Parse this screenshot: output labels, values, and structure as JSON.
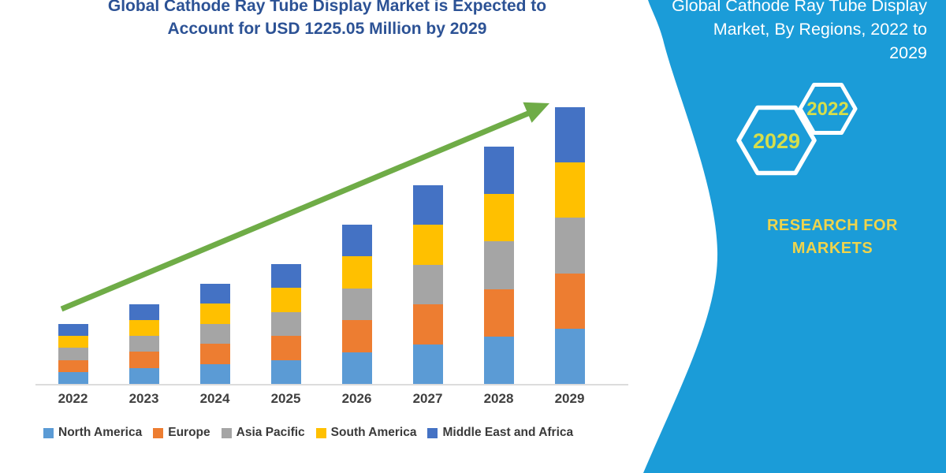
{
  "title": {
    "line1": "Global Cathode Ray Tube Display Market is Expected to",
    "line2": "Account for USD 1225.05 Million by 2029"
  },
  "panel": {
    "heading_lines": {
      "line1": "Global Cathode Ray Tube Display",
      "line2": "Market, By Regions, 2022 to",
      "line3": "2029"
    },
    "hexagons": [
      {
        "label": "2029"
      },
      {
        "label": "2022"
      }
    ],
    "brand": {
      "line1": "RESEARCH FOR",
      "line2": "MARKETS"
    },
    "background_color": "#1B9CD8",
    "hexagon_outline_color": "#ffffff",
    "hexagon_label_color": "#D6DE4B",
    "brand_color": "#EFD44C"
  },
  "chart_data": {
    "type": "bar",
    "stacked": true,
    "title": "Global Cathode Ray Tube Display Market is Expected to Account for USD 1225.05 Million by 2029",
    "unit": "USD Million",
    "categories": [
      "2022",
      "2023",
      "2024",
      "2025",
      "2026",
      "2027",
      "2028",
      "2029"
    ],
    "series": [
      {
        "name": "North America",
        "color": "#5B9BD5",
        "values": [
          53,
          71,
          89,
          106,
          141,
          176,
          210,
          245.01
        ]
      },
      {
        "name": "Europe",
        "color": "#ED7D31",
        "values": [
          53,
          71,
          89,
          106,
          141,
          176,
          210,
          245.01
        ]
      },
      {
        "name": "Asia Pacific",
        "color": "#A5A5A5",
        "values": [
          53,
          71,
          89,
          106,
          141,
          176,
          210,
          245.01
        ]
      },
      {
        "name": "South America",
        "color": "#FFC000",
        "values": [
          53,
          71,
          89,
          106,
          141,
          176,
          210,
          245.01
        ]
      },
      {
        "name": "Middle East and Africa",
        "color": "#4472C4",
        "values": [
          53,
          71,
          89,
          106,
          141,
          176,
          210,
          245.01
        ]
      }
    ],
    "totals_estimated": [
      265,
      355,
      445,
      530,
      705,
      880,
      1050,
      1225.05
    ],
    "ylim": [
      0,
      1260
    ],
    "y_axis_visible": false,
    "grid": false,
    "legend_position": "bottom",
    "trend_arrow": true,
    "trend_arrow_color": "#6FAC47"
  },
  "colors": {
    "title_text": "#2C5295",
    "axis_label": "#3f3f3f",
    "baseline": "#dcdcdc"
  }
}
